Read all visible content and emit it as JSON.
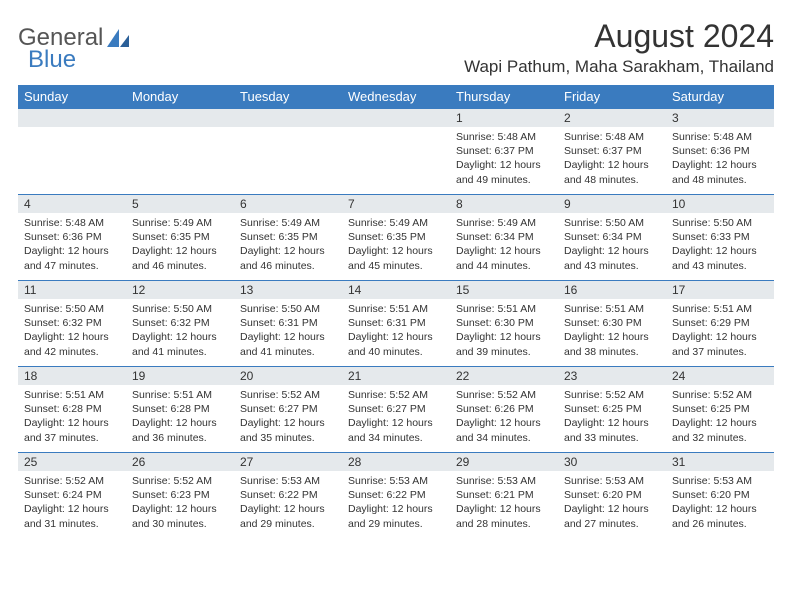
{
  "logo": {
    "word1": "General",
    "word2": "Blue"
  },
  "header": {
    "title": "August 2024",
    "subtitle": "Wapi Pathum, Maha Sarakham, Thailand"
  },
  "calendar": {
    "day_headers": [
      "Sunday",
      "Monday",
      "Tuesday",
      "Wednesday",
      "Thursday",
      "Friday",
      "Saturday"
    ],
    "header_bg": "#3a7bbf",
    "header_fg": "#ffffff",
    "daynum_bg": "#e5e9ec",
    "cell_border": "#3a7bbf",
    "text_color": "#333333",
    "detail_fontsize": 10.5,
    "weeks": [
      [
        null,
        null,
        null,
        null,
        {
          "n": "1",
          "sr": "5:48 AM",
          "ss": "6:37 PM",
          "dl": "12 hours and 49 minutes."
        },
        {
          "n": "2",
          "sr": "5:48 AM",
          "ss": "6:37 PM",
          "dl": "12 hours and 48 minutes."
        },
        {
          "n": "3",
          "sr": "5:48 AM",
          "ss": "6:36 PM",
          "dl": "12 hours and 48 minutes."
        }
      ],
      [
        {
          "n": "4",
          "sr": "5:48 AM",
          "ss": "6:36 PM",
          "dl": "12 hours and 47 minutes."
        },
        {
          "n": "5",
          "sr": "5:49 AM",
          "ss": "6:35 PM",
          "dl": "12 hours and 46 minutes."
        },
        {
          "n": "6",
          "sr": "5:49 AM",
          "ss": "6:35 PM",
          "dl": "12 hours and 46 minutes."
        },
        {
          "n": "7",
          "sr": "5:49 AM",
          "ss": "6:35 PM",
          "dl": "12 hours and 45 minutes."
        },
        {
          "n": "8",
          "sr": "5:49 AM",
          "ss": "6:34 PM",
          "dl": "12 hours and 44 minutes."
        },
        {
          "n": "9",
          "sr": "5:50 AM",
          "ss": "6:34 PM",
          "dl": "12 hours and 43 minutes."
        },
        {
          "n": "10",
          "sr": "5:50 AM",
          "ss": "6:33 PM",
          "dl": "12 hours and 43 minutes."
        }
      ],
      [
        {
          "n": "11",
          "sr": "5:50 AM",
          "ss": "6:32 PM",
          "dl": "12 hours and 42 minutes."
        },
        {
          "n": "12",
          "sr": "5:50 AM",
          "ss": "6:32 PM",
          "dl": "12 hours and 41 minutes."
        },
        {
          "n": "13",
          "sr": "5:50 AM",
          "ss": "6:31 PM",
          "dl": "12 hours and 41 minutes."
        },
        {
          "n": "14",
          "sr": "5:51 AM",
          "ss": "6:31 PM",
          "dl": "12 hours and 40 minutes."
        },
        {
          "n": "15",
          "sr": "5:51 AM",
          "ss": "6:30 PM",
          "dl": "12 hours and 39 minutes."
        },
        {
          "n": "16",
          "sr": "5:51 AM",
          "ss": "6:30 PM",
          "dl": "12 hours and 38 minutes."
        },
        {
          "n": "17",
          "sr": "5:51 AM",
          "ss": "6:29 PM",
          "dl": "12 hours and 37 minutes."
        }
      ],
      [
        {
          "n": "18",
          "sr": "5:51 AM",
          "ss": "6:28 PM",
          "dl": "12 hours and 37 minutes."
        },
        {
          "n": "19",
          "sr": "5:51 AM",
          "ss": "6:28 PM",
          "dl": "12 hours and 36 minutes."
        },
        {
          "n": "20",
          "sr": "5:52 AM",
          "ss": "6:27 PM",
          "dl": "12 hours and 35 minutes."
        },
        {
          "n": "21",
          "sr": "5:52 AM",
          "ss": "6:27 PM",
          "dl": "12 hours and 34 minutes."
        },
        {
          "n": "22",
          "sr": "5:52 AM",
          "ss": "6:26 PM",
          "dl": "12 hours and 34 minutes."
        },
        {
          "n": "23",
          "sr": "5:52 AM",
          "ss": "6:25 PM",
          "dl": "12 hours and 33 minutes."
        },
        {
          "n": "24",
          "sr": "5:52 AM",
          "ss": "6:25 PM",
          "dl": "12 hours and 32 minutes."
        }
      ],
      [
        {
          "n": "25",
          "sr": "5:52 AM",
          "ss": "6:24 PM",
          "dl": "12 hours and 31 minutes."
        },
        {
          "n": "26",
          "sr": "5:52 AM",
          "ss": "6:23 PM",
          "dl": "12 hours and 30 minutes."
        },
        {
          "n": "27",
          "sr": "5:53 AM",
          "ss": "6:22 PM",
          "dl": "12 hours and 29 minutes."
        },
        {
          "n": "28",
          "sr": "5:53 AM",
          "ss": "6:22 PM",
          "dl": "12 hours and 29 minutes."
        },
        {
          "n": "29",
          "sr": "5:53 AM",
          "ss": "6:21 PM",
          "dl": "12 hours and 28 minutes."
        },
        {
          "n": "30",
          "sr": "5:53 AM",
          "ss": "6:20 PM",
          "dl": "12 hours and 27 minutes."
        },
        {
          "n": "31",
          "sr": "5:53 AM",
          "ss": "6:20 PM",
          "dl": "12 hours and 26 minutes."
        }
      ]
    ],
    "labels": {
      "sunrise": "Sunrise:",
      "sunset": "Sunset:",
      "daylight": "Daylight:"
    }
  }
}
